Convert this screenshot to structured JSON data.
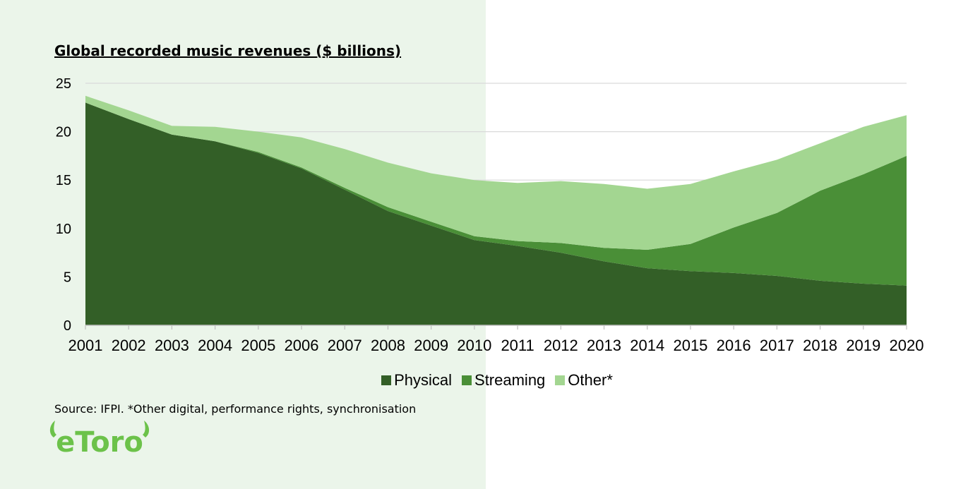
{
  "colors": {
    "background": "#ffffff",
    "panel": "#ebf5ea",
    "physical": "#335f27",
    "streaming": "#4a8f37",
    "other": "#a3d691",
    "grid": "#d9d9d9",
    "axis": "#bfbfbf",
    "logo": "#6cc24a"
  },
  "chart_data": {
    "type": "area",
    "stacked": true,
    "title": "Global recorded music revenues ($ billions)",
    "xlabel": "",
    "ylabel": "",
    "x": [
      "2001",
      "2002",
      "2003",
      "2004",
      "2005",
      "2006",
      "2007",
      "2008",
      "2009",
      "2010",
      "2011",
      "2012",
      "2013",
      "2014",
      "2015",
      "2016",
      "2017",
      "2018",
      "2019",
      "2020"
    ],
    "ylim": [
      0,
      25
    ],
    "yticks": [
      0,
      5,
      10,
      15,
      20,
      25
    ],
    "grid": true,
    "legend_position": "bottom",
    "series": [
      {
        "name": "Physical",
        "color": "#335f27",
        "values": [
          23.0,
          21.3,
          19.7,
          19.0,
          17.8,
          16.2,
          14.0,
          11.8,
          10.3,
          8.8,
          8.2,
          7.5,
          6.6,
          5.9,
          5.6,
          5.4,
          5.1,
          4.6,
          4.3,
          4.1
        ]
      },
      {
        "name": "Streaming",
        "color": "#4a8f37",
        "values": [
          0.0,
          0.0,
          0.0,
          0.0,
          0.1,
          0.1,
          0.2,
          0.4,
          0.4,
          0.4,
          0.5,
          1.0,
          1.4,
          1.9,
          2.8,
          4.7,
          6.5,
          9.3,
          11.3,
          13.4
        ]
      },
      {
        "name": "Other*",
        "color": "#a3d691",
        "values": [
          0.7,
          0.9,
          0.9,
          1.5,
          2.1,
          3.1,
          4.0,
          4.6,
          5.0,
          5.8,
          6.0,
          6.4,
          6.6,
          6.3,
          6.2,
          5.8,
          5.5,
          4.9,
          4.9,
          4.2
        ]
      }
    ]
  },
  "legend": {
    "physical": "Physical",
    "streaming": "Streaming",
    "other": "Other*"
  },
  "source_note": "Source: IFPI. *Other digital, performance rights, synchronisation",
  "logo": {
    "text": "eToro",
    "icon": "etoro-bull-horns-logo"
  }
}
